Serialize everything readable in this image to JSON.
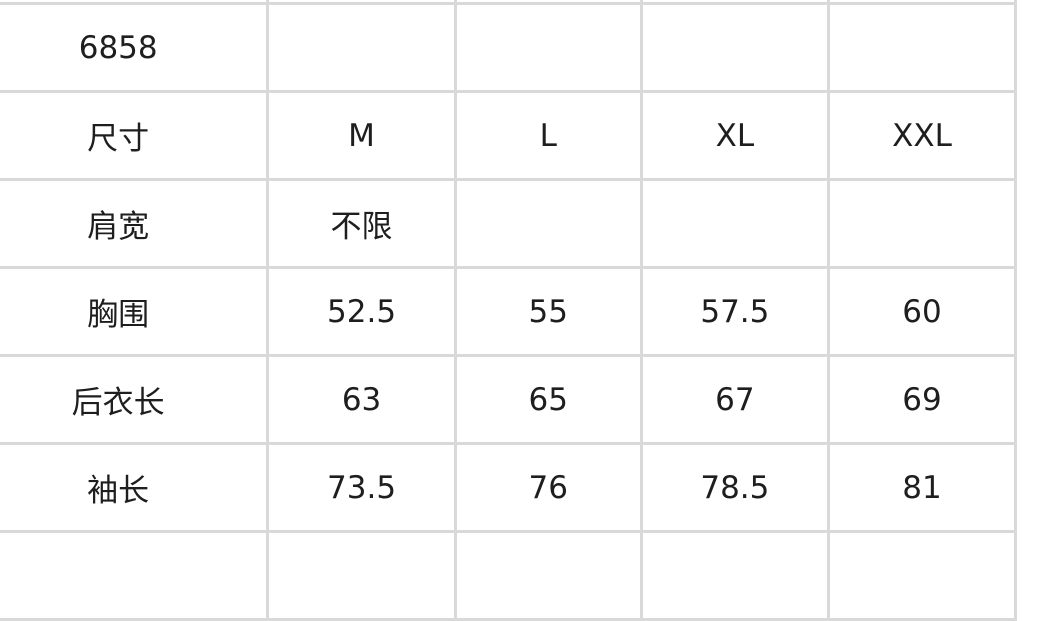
{
  "table": {
    "rows": [
      [
        "6858",
        "",
        "",
        "",
        ""
      ],
      [
        "尺寸",
        "M",
        "L",
        "XL",
        "XXL"
      ],
      [
        "肩宽",
        "不限",
        "",
        "",
        ""
      ],
      [
        "胸围",
        "52.5",
        "55",
        "57.5",
        "60"
      ],
      [
        "后衣长",
        "63",
        "65",
        "67",
        "69"
      ],
      [
        "袖长",
        "73.5",
        "76",
        "78.5",
        "81"
      ]
    ]
  }
}
